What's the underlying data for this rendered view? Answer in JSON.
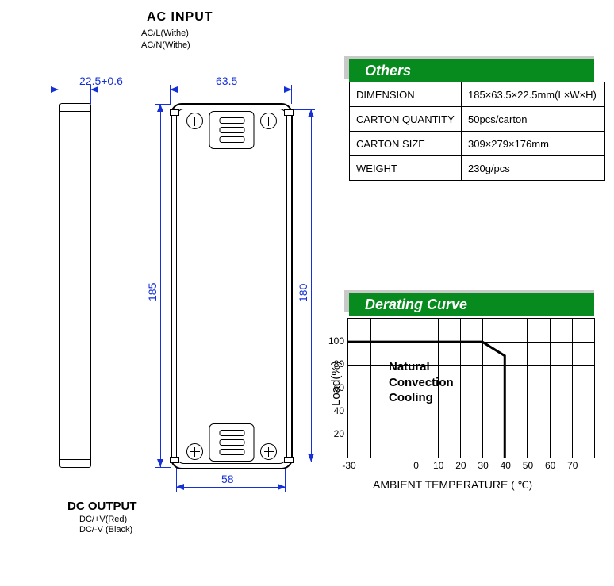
{
  "ac_input": {
    "title": "AC INPUT",
    "line1": "AC/L(Withe)",
    "line2": "AC/N(Withe)"
  },
  "dc_output": {
    "title": "DC OUTPUT",
    "line1": "DC/+V(Red)",
    "line2": "DC/-V (Black)"
  },
  "dimensions": {
    "depth": "22.5+0.6",
    "outer_width": "63.5",
    "outer_height": "185",
    "inner_height": "180",
    "inner_width": "58",
    "color": "#1530d6"
  },
  "others": {
    "header": "Others",
    "header_bg": "#078a1e",
    "rows": [
      {
        "label": "DIMENSION",
        "value": "185×63.5×22.5mm(L×W×H)"
      },
      {
        "label": "CARTON QUANTITY",
        "value": " 50pcs/carton"
      },
      {
        "label": "CARTON SIZE",
        "value": "309×279×176mm"
      },
      {
        "label": "WEIGHT",
        "value": "230g/pcs"
      }
    ]
  },
  "derating": {
    "header": "Derating Curve",
    "header_bg": "#078a1e",
    "type": "line",
    "note_line1": "Natural",
    "note_line2": "Convection",
    "note_line3": "Cooling",
    "y_title": "Load(%)",
    "x_title": "AMBIENT TEMPERATURE",
    "x_unit": "( ℃)",
    "x_ticks": [
      "-30",
      "0",
      "10",
      "20",
      "30",
      "40",
      "50",
      "60",
      "70"
    ],
    "y_ticks": [
      "20",
      "40",
      "60",
      "80",
      "100"
    ],
    "xlim": [
      -30,
      80
    ],
    "ylim": [
      0,
      120
    ],
    "x_grid_count": 11,
    "y_grid_count": 6,
    "grid_color": "#000000",
    "line_color": "#000000",
    "line_width": 3,
    "background_color": "#ffffff",
    "data_points": [
      {
        "x": -30,
        "y": 100
      },
      {
        "x": 30,
        "y": 100
      },
      {
        "x": 40,
        "y": 88
      },
      {
        "x": 40,
        "y": 0
      }
    ]
  }
}
